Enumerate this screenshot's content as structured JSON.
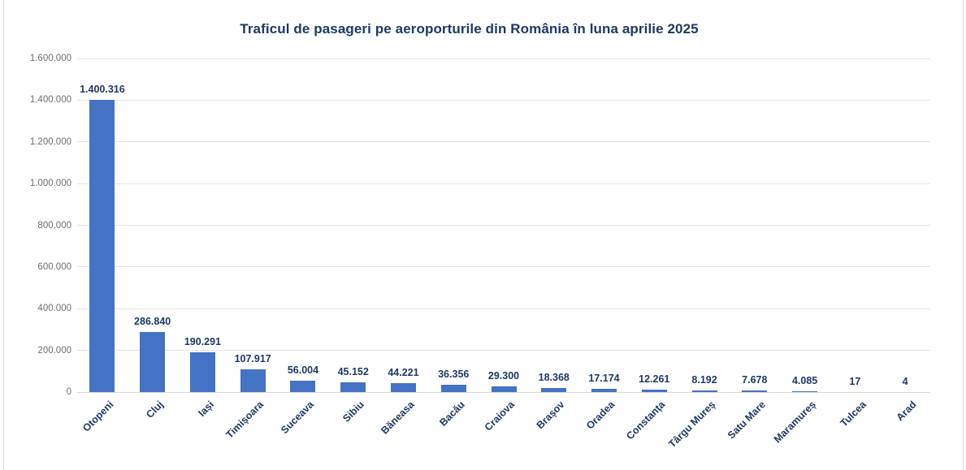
{
  "window": {
    "background": "#FFFFFF",
    "edge_line_color": "#D8D8D8"
  },
  "chart_data": {
    "type": "bar",
    "title": "Traficul de pasageri pe aeroporturile din România în luna aprilie 2025",
    "categories": [
      "Otopeni",
      "Cluj",
      "Iași",
      "Timișoara",
      "Suceava",
      "Sibiu",
      "Băneasa",
      "Bacău",
      "Craiova",
      "Brașov",
      "Oradea",
      "Constanța",
      "Târgu Mureș",
      "Satu Mare",
      "Maramureș",
      "Tulcea",
      "Arad"
    ],
    "values": [
      1400316,
      286840,
      190291,
      107917,
      56004,
      45152,
      44221,
      36356,
      29300,
      18368,
      17174,
      12261,
      8192,
      7678,
      4085,
      17,
      4
    ],
    "value_labels": [
      "1.400.316",
      "286.840",
      "190.291",
      "107.917",
      "56.004",
      "45.152",
      "44.221",
      "36.356",
      "29.300",
      "18.368",
      "17.174",
      "12.261",
      "8.192",
      "7.678",
      "4.085",
      "17",
      "4"
    ],
    "xlabel": "",
    "ylabel": "",
    "ylim": [
      0,
      1600000
    ],
    "ytick_step": 200000,
    "yticks": [
      0,
      200000,
      400000,
      600000,
      800000,
      1000000,
      1200000,
      1400000,
      1600000
    ],
    "ytick_labels": [
      "0",
      "200.000",
      "400.000",
      "600.000",
      "800.000",
      "1.000.000",
      "1.200.000",
      "1.400.000",
      "1.600.000"
    ],
    "grid": true,
    "legend": false,
    "bar_color": "#4472C4",
    "title_color": "#1F3864",
    "data_label_color": "#1F3864",
    "category_label_color": "#1F3864",
    "axis_text_color": "#6E6E6E",
    "gridline_color": "#E3E3E3",
    "baseline_color": "#D9D9D9"
  }
}
